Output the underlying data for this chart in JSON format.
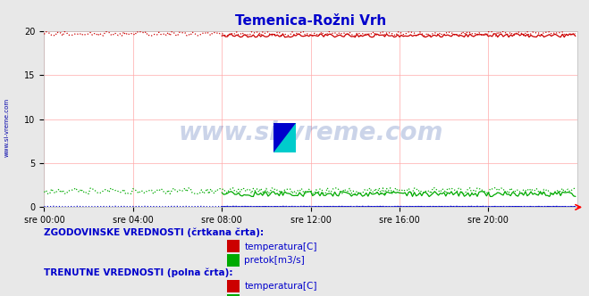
{
  "title": "Temenica-Rožni Vrh",
  "title_color": "#0000cc",
  "bg_color": "#e8e8e8",
  "plot_bg_color": "#ffffff",
  "grid_color": "#ffaaaa",
  "xlim": [
    0,
    288
  ],
  "ylim": [
    0,
    20
  ],
  "yticks": [
    0,
    5,
    10,
    15,
    20
  ],
  "xtick_labels": [
    "sre 00:00",
    "sre 04:00",
    "sre 08:00",
    "sre 12:00",
    "sre 16:00",
    "sre 20:00"
  ],
  "xtick_positions": [
    0,
    48,
    96,
    144,
    192,
    240
  ],
  "temp_color": "#cc0000",
  "pretok_color": "#00aa00",
  "visina_color": "#0000cc",
  "watermark": "www.si-vreme.com",
  "watermark_color": "#3355aa",
  "watermark_alpha": 0.25,
  "sidebar_text": "www.si-vreme.com",
  "sidebar_color": "#0000aa",
  "legend_title1": "ZGODOVINSKE VREDNOSTI (črtkana črta):",
  "legend_title2": "TRENUTNE VREDNOSTI (polna črta):",
  "legend_items": [
    "temperatura[C]",
    "pretok[m3/s]"
  ],
  "legend_color": "#0000cc",
  "temp_hist_value": 19.7,
  "pretok_hist_value": 1.8,
  "visina_hist_value": 0.08,
  "temp_curr_value": 19.5,
  "pretok_curr_value": 1.5,
  "visina_curr_value": 0.05,
  "curr_start": 96
}
